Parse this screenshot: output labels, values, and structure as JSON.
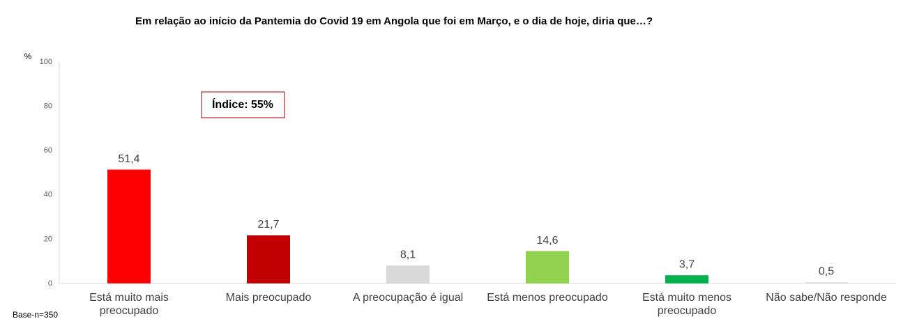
{
  "chart_data": {
    "type": "bar",
    "title": "Em relação ao início da Pantemia do Covid 19 em Angola que foi em Março, e o dia de hoje, diria que…?",
    "y_label": "%",
    "annotation": "Índice: 55%",
    "note": "Base-n=350",
    "categories": [
      "Está muito mais preocupado",
      "Mais preocupado",
      "A preocupação é igual",
      "Está menos preocupado",
      "Está muito menos preocupado",
      "Não sabe/Não responde"
    ],
    "values": [
      51.4,
      21.7,
      8.1,
      14.6,
      3.7,
      0.5
    ],
    "value_labels": [
      "51,4",
      "21,7",
      "8,1",
      "14,6",
      "3,7",
      "0,5"
    ],
    "colors": [
      "#ff0000",
      "#c00000",
      "#d9d9d9",
      "#92d050",
      "#00b050",
      "#d9d9d9"
    ],
    "ylim": [
      0,
      100
    ],
    "yticks": [
      0,
      20,
      40,
      60,
      80,
      100
    ],
    "grid": false
  }
}
